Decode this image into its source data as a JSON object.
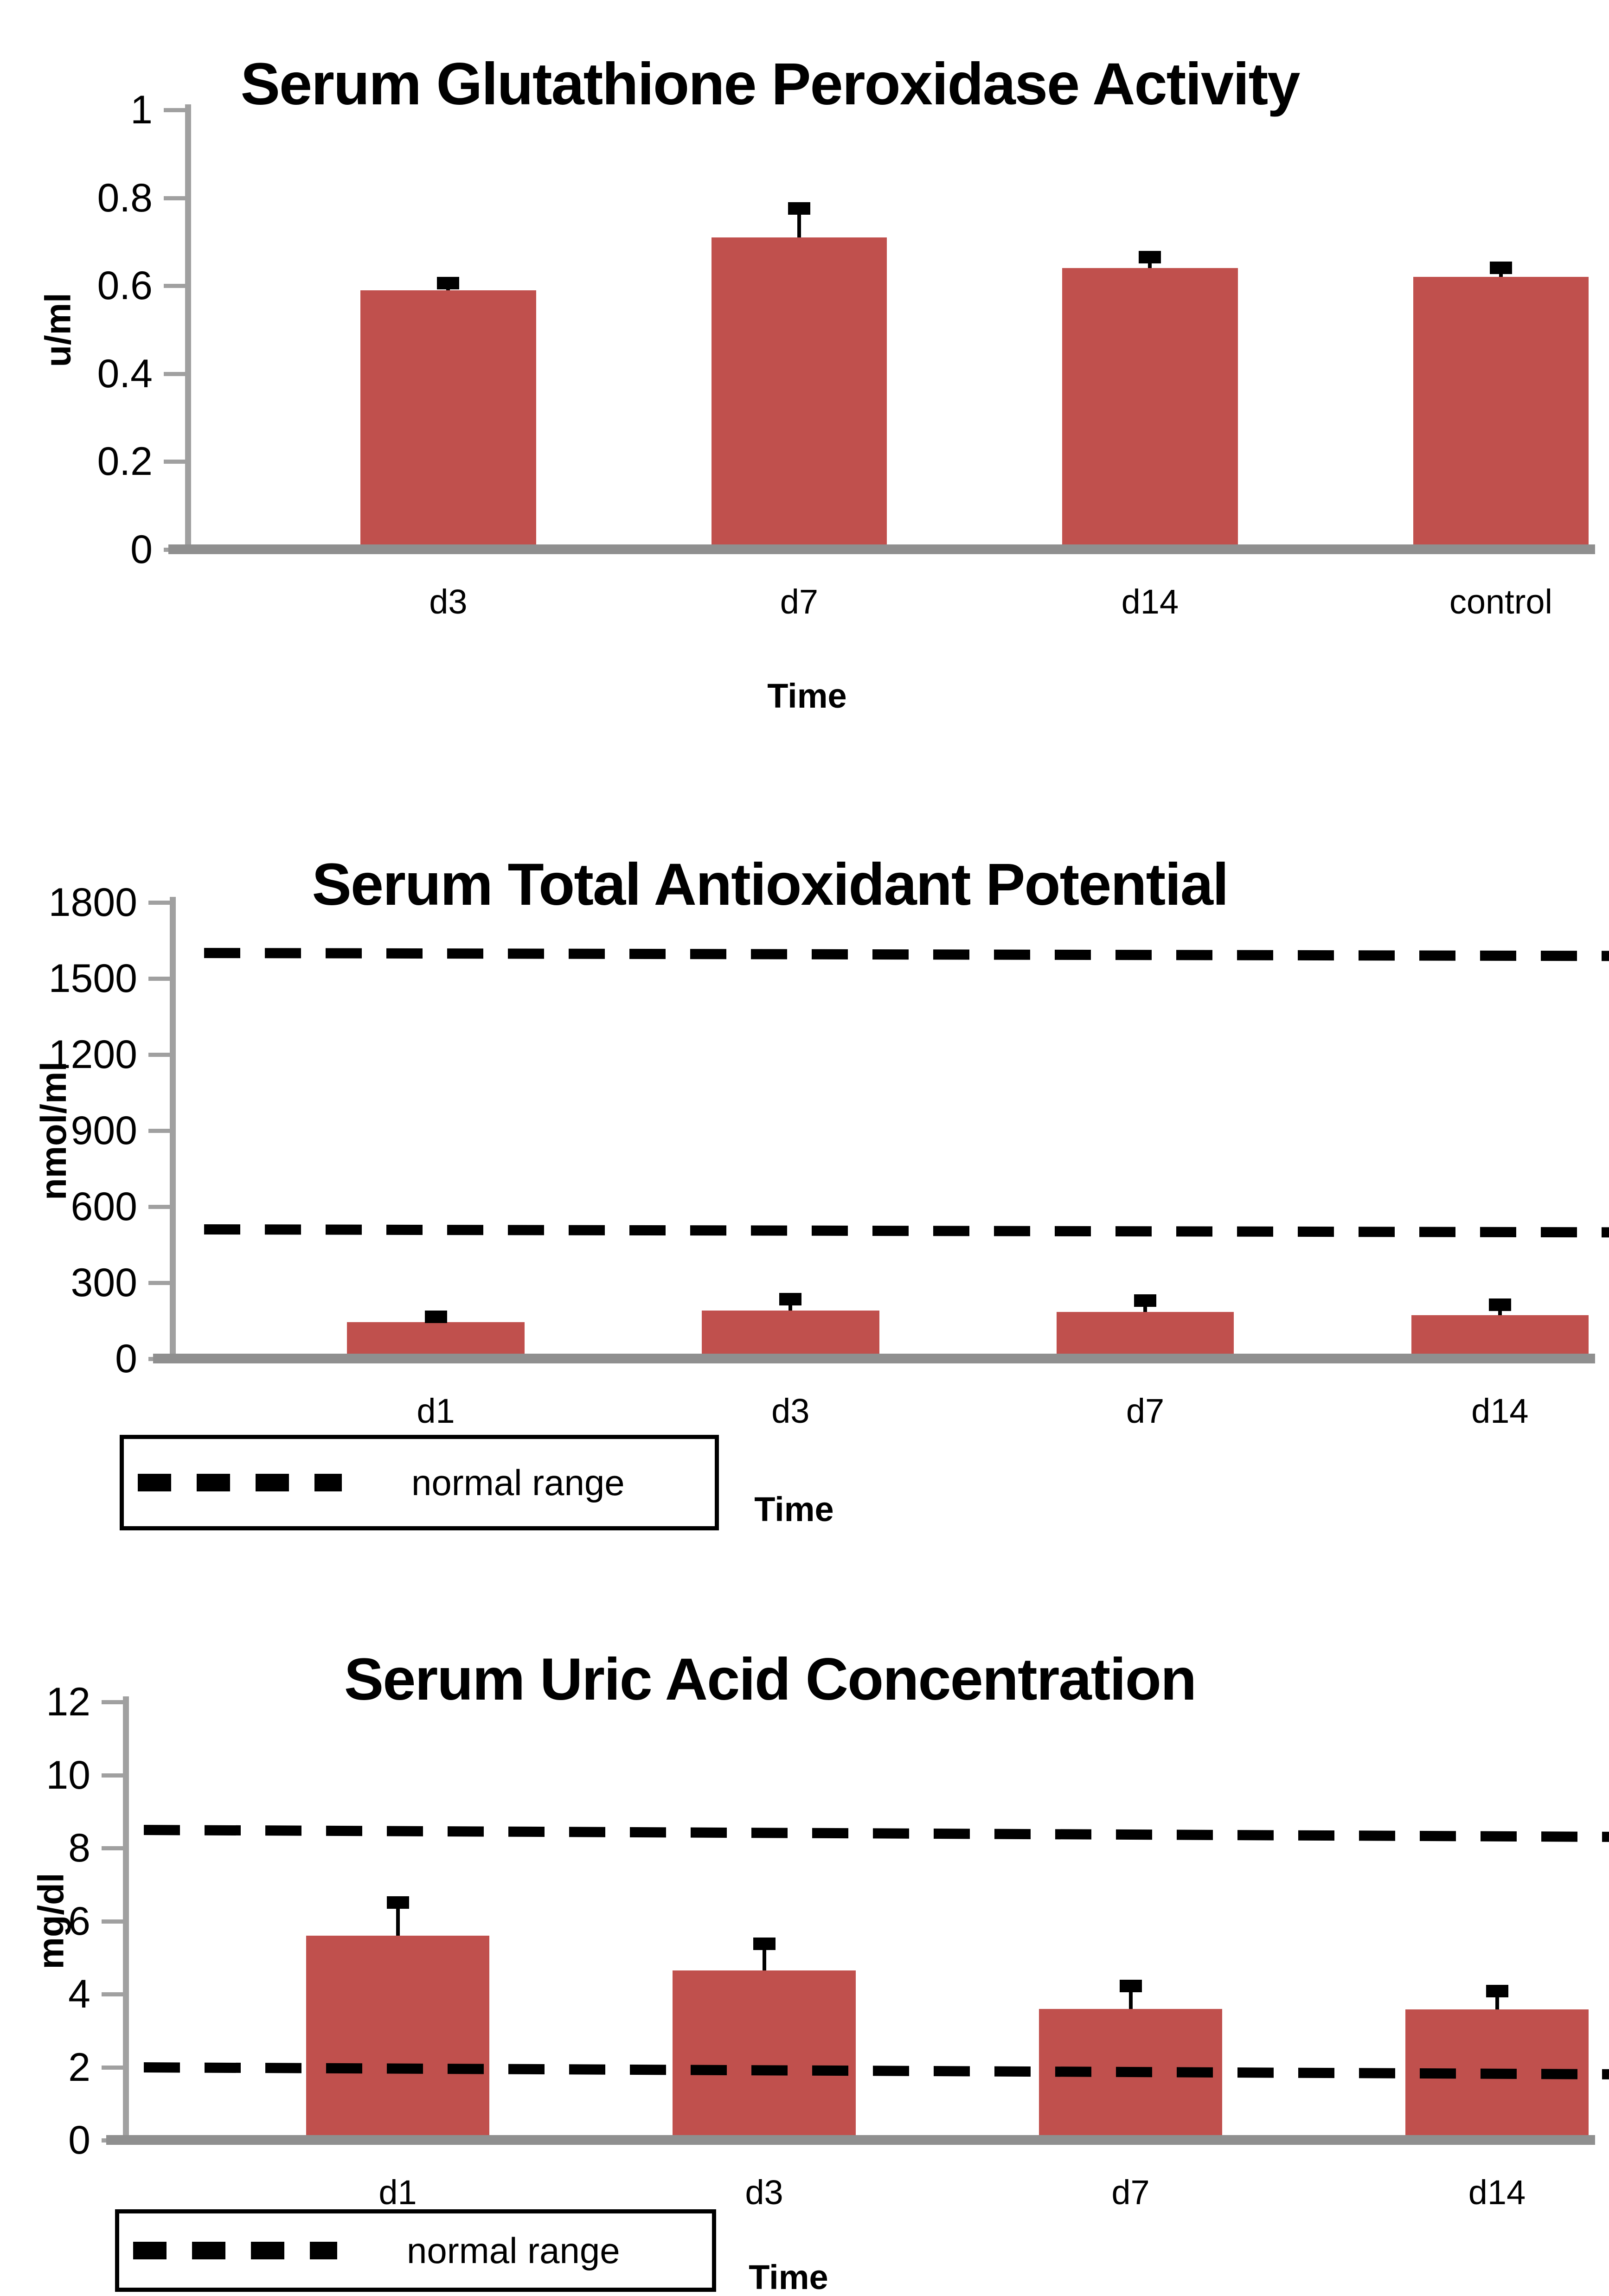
{
  "colors": {
    "bar": "#C0504D",
    "axis": "#a0a0a0",
    "baseline": "#8f8f8f",
    "error_bar": "#000000",
    "normal_range_line": "#000000"
  },
  "chart_data": [
    {
      "type": "bar",
      "title": "Serum Glutathione Peroxidase Activity",
      "ylabel": "u/ml",
      "xlabel": "Time",
      "categories": [
        "d3",
        "d7",
        "d14",
        "control"
      ],
      "values": [
        0.59,
        0.71,
        0.64,
        0.62
      ],
      "errors_plus": [
        0.015,
        0.065,
        0.025,
        0.02
      ],
      "ymax": 1,
      "ylim": [
        0,
        1
      ],
      "yticks": [
        0,
        0.2,
        0.4,
        0.6,
        0.8,
        1
      ],
      "ytick_labels": [
        "0",
        "0.2",
        "0.4",
        "0.6",
        "0.8",
        "1"
      ],
      "grid": false,
      "legend": null,
      "normal_range": null
    },
    {
      "type": "bar",
      "title": "Serum Total Antioxidant Potential",
      "ylabel": "nmol/ml",
      "xlabel": "Time",
      "categories": [
        "d1",
        "d3",
        "d7",
        "d14"
      ],
      "values": [
        145,
        190,
        185,
        172
      ],
      "errors_plus": [
        20,
        45,
        43,
        40
      ],
      "ymax": 1800,
      "ylim": [
        0,
        1800
      ],
      "yticks": [
        0,
        300,
        600,
        900,
        1200,
        1500,
        1800
      ],
      "ytick_labels": [
        "0",
        "300",
        "600",
        "900",
        "1200",
        "1500",
        "1800"
      ],
      "grid": false,
      "legend": "bottom-left box",
      "normal_range": {
        "upper": 1600,
        "lower": 510,
        "label": "normal range",
        "style": "dashed"
      }
    },
    {
      "type": "bar",
      "title": "Serum Uric Acid Concentration",
      "ylabel": "mg/dl",
      "xlabel": "Time",
      "categories": [
        "d1",
        "d3",
        "d7",
        "d14"
      ],
      "values": [
        5.6,
        4.65,
        3.6,
        3.58
      ],
      "errors_plus": [
        0.9,
        0.72,
        0.62,
        0.5
      ],
      "ymax": 12,
      "ylim": [
        0,
        12
      ],
      "yticks": [
        0,
        2,
        4,
        6,
        8,
        10,
        12
      ],
      "ytick_labels": [
        "0",
        "2",
        "4",
        "6",
        "8",
        "10",
        "12"
      ],
      "grid": false,
      "legend": "bottom-left box",
      "normal_range": {
        "upper": 8.5,
        "lower": 2.0,
        "label": "normal range",
        "style": "dashed"
      }
    }
  ]
}
